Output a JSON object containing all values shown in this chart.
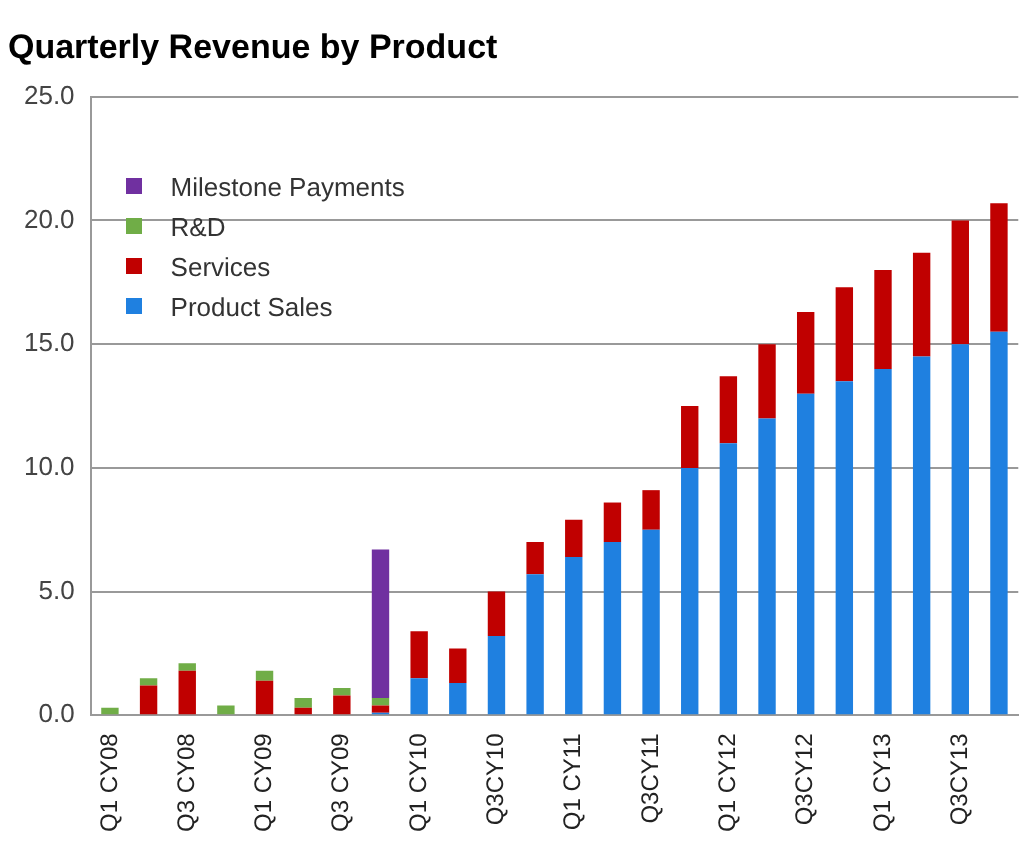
{
  "chart_data": {
    "type": "bar",
    "title": "Quarterly Revenue by Product",
    "stacked": true,
    "legend": "top left",
    "grid": "y",
    "categories": [
      "Q1 CY08",
      null,
      "Q3 CY08",
      null,
      "Q1 CY09",
      null,
      "Q3 CY09",
      null,
      "Q1 CY10",
      null,
      "Q3CY10",
      null,
      "Q1 CY11",
      null,
      "Q3CY11",
      null,
      "Q1 CY12",
      null,
      "Q3CY12",
      null,
      "Q1 CY13",
      null,
      "Q3CY13",
      null
    ],
    "ylim": [
      0,
      25
    ],
    "yticks": [
      {
        "value": 0,
        "label": "0.0"
      },
      {
        "value": 5,
        "label": "5.0"
      },
      {
        "value": 10,
        "label": "10.0"
      },
      {
        "value": 15,
        "label": "15.0"
      },
      {
        "value": 20,
        "label": "20.0"
      },
      {
        "value": 25,
        "label": "25.0"
      }
    ],
    "series": [
      {
        "name": "Product Sales",
        "color": "#1f80e0",
        "values": [
          null,
          null,
          null,
          null,
          null,
          null,
          null,
          0.1,
          1.5,
          1.3,
          3.2,
          5.7,
          6.4,
          7.0,
          7.5,
          10.0,
          11.0,
          12.0,
          13.0,
          13.5,
          14.0,
          14.5,
          15.0,
          15.5
        ]
      },
      {
        "name": "Services",
        "color": "#c00000",
        "values": [
          null,
          1.2,
          1.8,
          null,
          1.4,
          0.3,
          0.8,
          0.3,
          1.9,
          1.4,
          1.8,
          1.3,
          1.5,
          1.6,
          1.6,
          2.5,
          2.7,
          3.0,
          3.3,
          3.8,
          4.0,
          4.2,
          5.0,
          5.2
        ]
      },
      {
        "name": "R&D",
        "color": "#70ad47",
        "values": [
          0.3,
          0.3,
          0.3,
          0.4,
          0.4,
          0.4,
          0.3,
          0.3,
          null,
          null,
          null,
          null,
          null,
          null,
          null,
          null,
          null,
          null,
          null,
          null,
          null,
          null,
          null,
          null
        ]
      },
      {
        "name": "Milestone Payments",
        "color": "#7030a0",
        "values": [
          null,
          null,
          null,
          null,
          null,
          null,
          null,
          6.0,
          null,
          null,
          null,
          null,
          null,
          null,
          null,
          null,
          null,
          null,
          null,
          null,
          null,
          null,
          null,
          null
        ]
      }
    ]
  }
}
